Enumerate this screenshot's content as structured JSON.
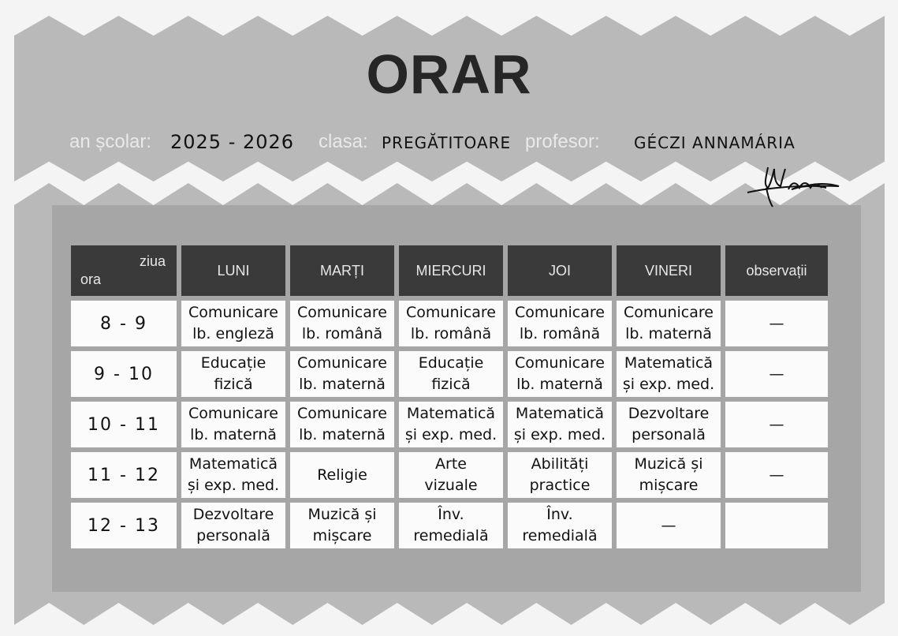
{
  "header": {
    "title": "ORAR",
    "school_year_label": "an școlar:",
    "school_year_value": "2025 - 2026",
    "class_label": "clasa:",
    "class_value": "PREGĂTITOARE",
    "teacher_label": "profesor:",
    "teacher_value": "GÉCZI ANNAMÁRIA"
  },
  "table": {
    "corner_day": "ziua",
    "corner_hour": "ora",
    "columns": [
      "LUNI",
      "MARȚI",
      "MIERCURI",
      "JOI",
      "VINERI",
      "observații"
    ],
    "rows": [
      {
        "time": "8 - 9",
        "cells": [
          [
            "Comunicare",
            "lb. engleză"
          ],
          [
            "Comunicare",
            "lb. română"
          ],
          [
            "Comunicare",
            "lb. română"
          ],
          [
            "Comunicare",
            "lb. română"
          ],
          [
            "Comunicare",
            "lb. maternă"
          ]
        ],
        "obs": "—"
      },
      {
        "time": "9 - 10",
        "cells": [
          [
            "Educație",
            "fizică"
          ],
          [
            "Comunicare",
            "lb. maternă"
          ],
          [
            "Educație",
            "fizică"
          ],
          [
            "Comunicare",
            "lb. maternă"
          ],
          [
            "Matematică",
            "și exp. med."
          ]
        ],
        "obs": "—"
      },
      {
        "time": "10 - 11",
        "cells": [
          [
            "Comunicare",
            "lb. maternă"
          ],
          [
            "Comunicare",
            "lb. maternă"
          ],
          [
            "Matematică",
            "și exp. med."
          ],
          [
            "Matematică",
            "și exp. med."
          ],
          [
            "Dezvoltare",
            "personală"
          ]
        ],
        "obs": "—"
      },
      {
        "time": "11 - 12",
        "cells": [
          [
            "Matematică",
            "și exp. med."
          ],
          [
            "Religie",
            ""
          ],
          [
            "Arte",
            "vizuale"
          ],
          [
            "Abilități",
            "practice"
          ],
          [
            "Muzică și",
            "mișcare"
          ]
        ],
        "obs": "—"
      },
      {
        "time": "12 - 13",
        "cells": [
          [
            "Dezvoltare",
            "personală"
          ],
          [
            "Muzică și",
            "mișcare"
          ],
          [
            "Înv.",
            "remedială"
          ],
          [
            "Înv.",
            "remedială"
          ],
          [
            "—",
            ""
          ]
        ],
        "obs": ""
      }
    ]
  },
  "colors": {
    "band": "#b9b9b9",
    "panel": "#a6a6a6",
    "header_cell": "#3a3a3a",
    "cell": "#fbfbfb"
  }
}
